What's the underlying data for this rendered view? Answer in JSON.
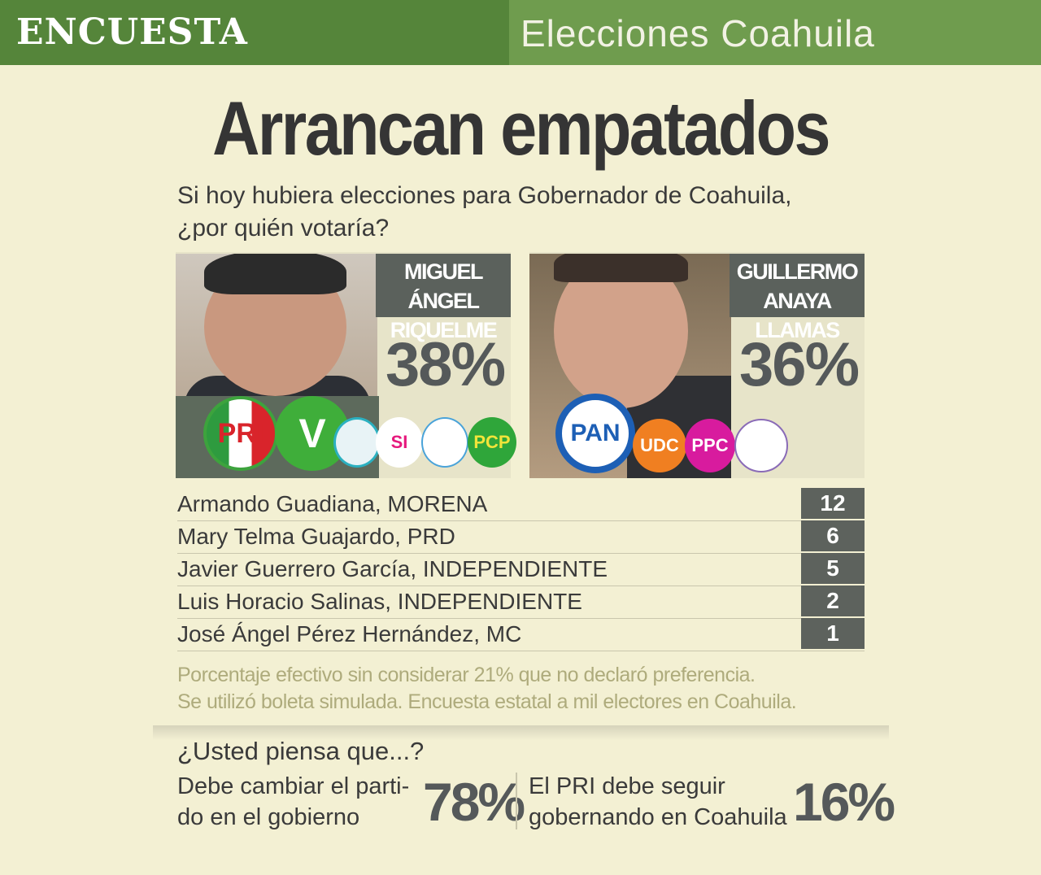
{
  "header": {
    "label": "ENCUESTA",
    "section": "Elecciones Coahuila"
  },
  "title": "Arrancan empatados",
  "question": [
    "Si hoy hubiera elecciones para Gobernador de Coahuila,",
    "¿por quién votaría?"
  ],
  "candidates": [
    {
      "name": [
        "MIGUEL ÁNGEL",
        "RIQUELME"
      ],
      "percent": "38%",
      "parties": [
        "PRI",
        "SI",
        "PCP"
      ]
    },
    {
      "name": [
        "GUILLERMO",
        "ANAYA LLAMAS"
      ],
      "percent": "36%",
      "parties": [
        "PAN",
        "UDC",
        "PPC"
      ]
    }
  ],
  "others": {
    "rows": [
      [
        "Armando Guadiana, MORENA",
        12
      ],
      [
        "Mary Telma Guajardo, PRD",
        6
      ],
      [
        "Javier Guerrero García, INDEPENDIENTE",
        5
      ],
      [
        "Luis Horacio Salinas, INDEPENDIENTE",
        2
      ],
      [
        "José Ángel Pérez Hernández, MC",
        1
      ]
    ]
  },
  "notes": [
    "Porcentaje efectivo sin considerar 21% que no declaró preferencia.",
    "Se utilizó boleta simulada. Encuesta estatal a mil electores en Coahuila."
  ],
  "opinion": {
    "question": "¿Usted piensa que...?",
    "options": [
      {
        "text": [
          "Debe cambiar el parti-",
          "do en el gobierno"
        ],
        "percent": "78%"
      },
      {
        "text": [
          "El PRI debe seguir",
          "gobernando en Coahuila"
        ],
        "percent": "16%"
      }
    ]
  }
}
